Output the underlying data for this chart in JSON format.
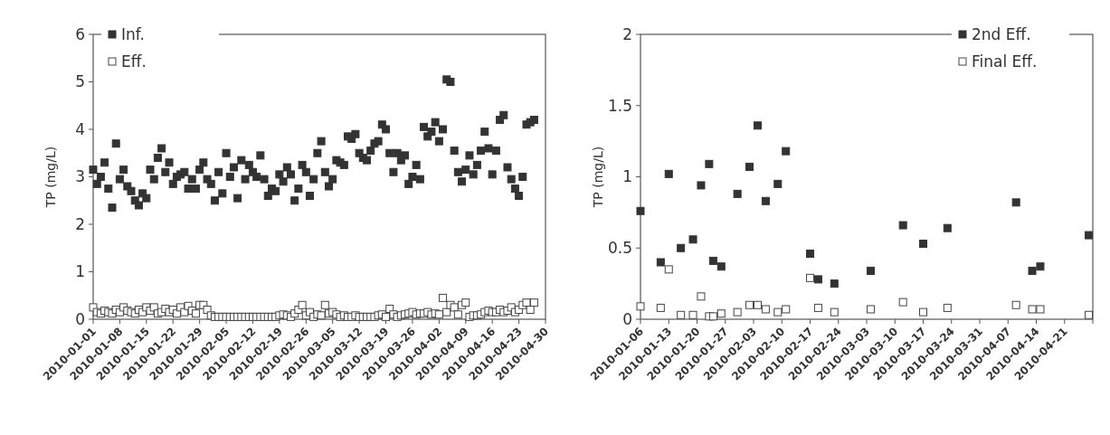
{
  "chart_data": [
    {
      "type": "scatter",
      "ylabel": "TP (mg/L)",
      "marker": "square",
      "legend": "top left",
      "grid": false,
      "xlim": [
        "2010-01-01",
        "2010-04-30"
      ],
      "xticks": [
        "2010-01-01",
        "2010-01-08",
        "2010-01-15",
        "2010-01-22",
        "2010-01-29",
        "2010-02-05",
        "2010-02-12",
        "2010-02-19",
        "2010-02-26",
        "2010-03-05",
        "2010-03-12",
        "2010-03-19",
        "2010-03-26",
        "2010-04-02",
        "2010-04-09",
        "2010-04-16",
        "2010-04-23",
        "2010-04-30"
      ],
      "ylim": [
        0,
        6
      ],
      "yticks": [
        0,
        1,
        2,
        3,
        4,
        5,
        6
      ],
      "x": [
        "2010-01-01",
        "2010-01-02",
        "2010-01-03",
        "2010-01-04",
        "2010-01-05",
        "2010-01-06",
        "2010-01-07",
        "2010-01-08",
        "2010-01-09",
        "2010-01-10",
        "2010-01-11",
        "2010-01-12",
        "2010-01-13",
        "2010-01-14",
        "2010-01-15",
        "2010-01-16",
        "2010-01-17",
        "2010-01-18",
        "2010-01-19",
        "2010-01-20",
        "2010-01-21",
        "2010-01-22",
        "2010-01-23",
        "2010-01-24",
        "2010-01-25",
        "2010-01-26",
        "2010-01-27",
        "2010-01-28",
        "2010-01-29",
        "2010-01-30",
        "2010-01-31",
        "2010-02-01",
        "2010-02-02",
        "2010-02-03",
        "2010-02-04",
        "2010-02-05",
        "2010-02-06",
        "2010-02-07",
        "2010-02-08",
        "2010-02-09",
        "2010-02-10",
        "2010-02-11",
        "2010-02-12",
        "2010-02-13",
        "2010-02-14",
        "2010-02-15",
        "2010-02-16",
        "2010-02-17",
        "2010-02-18",
        "2010-02-19",
        "2010-02-20",
        "2010-02-21",
        "2010-02-22",
        "2010-02-23",
        "2010-02-24",
        "2010-02-25",
        "2010-02-26",
        "2010-02-27",
        "2010-02-28",
        "2010-03-01",
        "2010-03-02",
        "2010-03-03",
        "2010-03-04",
        "2010-03-05",
        "2010-03-06",
        "2010-03-07",
        "2010-03-08",
        "2010-03-09",
        "2010-03-10",
        "2010-03-11",
        "2010-03-12",
        "2010-03-13",
        "2010-03-14",
        "2010-03-15",
        "2010-03-16",
        "2010-03-17",
        "2010-03-18",
        "2010-03-19",
        "2010-03-20",
        "2010-03-21",
        "2010-03-22",
        "2010-03-23",
        "2010-03-24",
        "2010-03-25",
        "2010-03-26",
        "2010-03-27",
        "2010-03-28",
        "2010-03-29",
        "2010-03-30",
        "2010-03-31",
        "2010-04-01",
        "2010-04-02",
        "2010-04-03",
        "2010-04-04",
        "2010-04-05",
        "2010-04-06",
        "2010-04-07",
        "2010-04-08",
        "2010-04-09",
        "2010-04-10",
        "2010-04-11",
        "2010-04-12",
        "2010-04-13",
        "2010-04-14",
        "2010-04-15",
        "2010-04-16",
        "2010-04-17",
        "2010-04-18",
        "2010-04-19",
        "2010-04-20",
        "2010-04-21",
        "2010-04-22",
        "2010-04-23",
        "2010-04-24",
        "2010-04-25",
        "2010-04-26",
        "2010-04-27"
      ],
      "series": [
        {
          "name": "Inf.",
          "color": "#333333",
          "values": [
            3.15,
            2.85,
            3.0,
            3.3,
            2.75,
            2.35,
            3.7,
            2.95,
            3.15,
            2.8,
            2.7,
            2.5,
            2.4,
            2.65,
            2.55,
            3.15,
            2.95,
            3.4,
            3.6,
            3.1,
            3.3,
            2.85,
            3.0,
            3.05,
            3.1,
            2.75,
            2.95,
            2.75,
            3.15,
            3.3,
            2.95,
            2.85,
            2.5,
            3.1,
            2.65,
            3.5,
            3.0,
            3.2,
            2.55,
            3.35,
            2.95,
            3.25,
            3.1,
            3.0,
            3.45,
            2.95,
            2.6,
            2.75,
            2.7,
            3.05,
            2.9,
            3.2,
            3.05,
            2.5,
            2.75,
            3.25,
            3.1,
            2.6,
            2.95,
            3.5,
            3.75,
            3.1,
            2.8,
            2.95,
            3.35,
            3.3,
            3.25,
            3.85,
            3.8,
            3.9,
            3.5,
            3.4,
            3.35,
            3.55,
            3.7,
            3.75,
            4.1,
            4.0,
            3.5,
            3.1,
            3.5,
            3.35,
            3.45,
            2.85,
            3.0,
            3.25,
            2.95,
            4.05,
            3.85,
            3.95,
            4.15,
            3.75,
            4.0,
            5.05,
            5.0,
            3.55,
            3.1,
            2.9,
            3.15,
            3.45,
            3.05,
            3.25,
            3.55,
            3.95,
            3.6,
            3.05,
            3.55,
            4.2,
            4.3,
            3.2,
            2.95,
            2.75,
            2.6,
            3.0,
            4.1,
            4.15,
            4.2
          ]
        },
        {
          "name": "Eff.",
          "color": "#444444",
          "values": [
            0.25,
            0.15,
            0.12,
            0.18,
            0.15,
            0.12,
            0.2,
            0.15,
            0.25,
            0.18,
            0.15,
            0.12,
            0.2,
            0.15,
            0.25,
            0.18,
            0.25,
            0.12,
            0.15,
            0.22,
            0.15,
            0.2,
            0.12,
            0.25,
            0.15,
            0.28,
            0.18,
            0.12,
            0.3,
            0.3,
            0.2,
            0.08,
            0.05,
            0.05,
            0.05,
            0.05,
            0.05,
            0.05,
            0.05,
            0.05,
            0.05,
            0.05,
            0.05,
            0.05,
            0.05,
            0.05,
            0.05,
            0.05,
            0.05,
            0.08,
            0.1,
            0.08,
            0.05,
            0.12,
            0.2,
            0.3,
            0.08,
            0.15,
            0.05,
            0.1,
            0.08,
            0.3,
            0.12,
            0.15,
            0.1,
            0.05,
            0.08,
            0.05,
            0.05,
            0.08,
            0.05,
            0.05,
            0.05,
            0.05,
            0.05,
            0.08,
            0.1,
            0.05,
            0.22,
            0.1,
            0.05,
            0.08,
            0.1,
            0.12,
            0.15,
            0.1,
            0.12,
            0.12,
            0.15,
            0.1,
            0.12,
            0.1,
            0.45,
            0.15,
            0.3,
            0.25,
            0.1,
            0.3,
            0.35,
            0.05,
            0.08,
            0.08,
            0.1,
            0.15,
            0.18,
            0.15,
            0.15,
            0.2,
            0.15,
            0.18,
            0.25,
            0.15,
            0.2,
            0.3,
            0.35,
            0.2,
            0.35
          ]
        }
      ]
    },
    {
      "type": "scatter",
      "ylabel": "TP (mg/L)",
      "marker": "square",
      "legend": "top right",
      "grid": false,
      "xlim": [
        "2010-01-06",
        "2010-04-28"
      ],
      "xticks": [
        "2010-01-06",
        "2010-01-13",
        "2010-01-20",
        "2010-01-27",
        "2010-02-03",
        "2010-02-10",
        "2010-02-17",
        "2010-02-24",
        "2010-03-03",
        "2010-03-10",
        "2010-03-17",
        "2010-03-24",
        "2010-03-31",
        "2010-04-07",
        "2010-04-14",
        "2010-04-21",
        {
          "value": "2010-04-28",
          "label": null
        }
      ],
      "ylim": [
        0,
        2
      ],
      "yticks": [
        0,
        0.5,
        1,
        1.5,
        2
      ],
      "x": [
        "2010-01-06",
        "2010-01-11",
        "2010-01-13",
        "2010-01-16",
        "2010-01-19",
        "2010-01-21",
        "2010-01-23",
        "2010-01-24",
        "2010-01-26",
        "2010-01-30",
        "2010-02-02",
        "2010-02-04",
        "2010-02-06",
        "2010-02-09",
        "2010-02-11",
        "2010-02-17",
        "2010-02-19",
        "2010-02-23",
        "2010-03-04",
        "2010-03-12",
        "2010-03-17",
        "2010-03-23",
        "2010-04-09",
        "2010-04-13",
        "2010-04-15",
        "2010-04-27"
      ],
      "series": [
        {
          "name": "2nd Eff.",
          "color": "#333333",
          "values": [
            0.76,
            0.4,
            1.02,
            0.5,
            0.56,
            0.94,
            1.09,
            0.41,
            0.37,
            0.88,
            1.07,
            1.36,
            0.83,
            0.95,
            1.18,
            0.46,
            0.28,
            0.25,
            0.34,
            0.66,
            0.53,
            0.64,
            0.82,
            0.34,
            0.37,
            0.59
          ]
        },
        {
          "name": "Final Eff.",
          "color": "#444444",
          "values": [
            0.09,
            0.08,
            0.35,
            0.03,
            0.03,
            0.16,
            0.02,
            0.02,
            0.04,
            0.05,
            0.1,
            0.1,
            0.07,
            0.05,
            0.07,
            0.29,
            0.08,
            0.05,
            0.07,
            0.12,
            0.05,
            0.08,
            0.1,
            0.07,
            0.07,
            0.03
          ]
        }
      ]
    }
  ]
}
